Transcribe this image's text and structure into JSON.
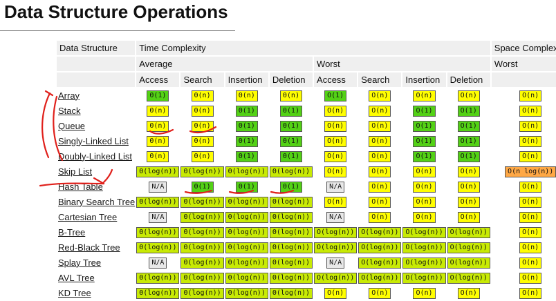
{
  "title": "Data Structure Operations",
  "headers": {
    "row1": [
      "Data Structure",
      "Time Complexity",
      "Space Complexity"
    ],
    "row2": [
      "Average",
      "Worst",
      "Worst"
    ],
    "row3": [
      "Access",
      "Search",
      "Insertion",
      "Deletion",
      "Access",
      "Search",
      "Insertion",
      "Deletion"
    ]
  },
  "colors": {
    "green": "#53d115",
    "yellow": "#fffe01",
    "lime": "#c8ea04",
    "orange": "#ffa845",
    "gray": "#e8e8e8",
    "ink": "#e0201b"
  },
  "rows": [
    {
      "name": "Array",
      "cells": [
        [
          "Θ(1)",
          "green"
        ],
        [
          "Θ(n)",
          "yellow"
        ],
        [
          "Θ(n)",
          "yellow"
        ],
        [
          "Θ(n)",
          "yellow"
        ],
        [
          "O(1)",
          "green"
        ],
        [
          "O(n)",
          "yellow"
        ],
        [
          "O(n)",
          "yellow"
        ],
        [
          "O(n)",
          "yellow"
        ],
        [
          "O(n)",
          "yellow"
        ]
      ]
    },
    {
      "name": "Stack",
      "cells": [
        [
          "Θ(n)",
          "yellow"
        ],
        [
          "Θ(n)",
          "yellow"
        ],
        [
          "Θ(1)",
          "green"
        ],
        [
          "Θ(1)",
          "green"
        ],
        [
          "O(n)",
          "yellow"
        ],
        [
          "O(n)",
          "yellow"
        ],
        [
          "O(1)",
          "green"
        ],
        [
          "O(1)",
          "green"
        ],
        [
          "O(n)",
          "yellow"
        ]
      ]
    },
    {
      "name": "Queue",
      "cells": [
        [
          "Θ(n)",
          "yellow"
        ],
        [
          "Θ(n)",
          "yellow"
        ],
        [
          "Θ(1)",
          "green"
        ],
        [
          "Θ(1)",
          "green"
        ],
        [
          "O(n)",
          "yellow"
        ],
        [
          "O(n)",
          "yellow"
        ],
        [
          "O(1)",
          "green"
        ],
        [
          "O(1)",
          "green"
        ],
        [
          "O(n)",
          "yellow"
        ]
      ]
    },
    {
      "name": "Singly-Linked List",
      "cells": [
        [
          "Θ(n)",
          "yellow"
        ],
        [
          "Θ(n)",
          "yellow"
        ],
        [
          "Θ(1)",
          "green"
        ],
        [
          "Θ(1)",
          "green"
        ],
        [
          "O(n)",
          "yellow"
        ],
        [
          "O(n)",
          "yellow"
        ],
        [
          "O(1)",
          "green"
        ],
        [
          "O(1)",
          "green"
        ],
        [
          "O(n)",
          "yellow"
        ]
      ]
    },
    {
      "name": "Doubly-Linked List",
      "cells": [
        [
          "Θ(n)",
          "yellow"
        ],
        [
          "Θ(n)",
          "yellow"
        ],
        [
          "Θ(1)",
          "green"
        ],
        [
          "Θ(1)",
          "green"
        ],
        [
          "O(n)",
          "yellow"
        ],
        [
          "O(n)",
          "yellow"
        ],
        [
          "O(1)",
          "green"
        ],
        [
          "O(1)",
          "green"
        ],
        [
          "O(n)",
          "yellow"
        ]
      ]
    },
    {
      "name": "Skip List",
      "cells": [
        [
          "Θ(log(n))",
          "lime"
        ],
        [
          "Θ(log(n))",
          "lime"
        ],
        [
          "Θ(log(n))",
          "lime"
        ],
        [
          "Θ(log(n))",
          "lime"
        ],
        [
          "O(n)",
          "yellow"
        ],
        [
          "O(n)",
          "yellow"
        ],
        [
          "O(n)",
          "yellow"
        ],
        [
          "O(n)",
          "yellow"
        ],
        [
          "O(n log(n))",
          "orange"
        ]
      ]
    },
    {
      "name": "Hash Table",
      "cells": [
        [
          "N/A",
          "gray"
        ],
        [
          "Θ(1)",
          "green"
        ],
        [
          "Θ(1)",
          "green"
        ],
        [
          "Θ(1)",
          "green"
        ],
        [
          "N/A",
          "gray"
        ],
        [
          "O(n)",
          "yellow"
        ],
        [
          "O(n)",
          "yellow"
        ],
        [
          "O(n)",
          "yellow"
        ],
        [
          "O(n)",
          "yellow"
        ]
      ]
    },
    {
      "name": "Binary Search Tree",
      "cells": [
        [
          "Θ(log(n))",
          "lime"
        ],
        [
          "Θ(log(n))",
          "lime"
        ],
        [
          "Θ(log(n))",
          "lime"
        ],
        [
          "Θ(log(n))",
          "lime"
        ],
        [
          "O(n)",
          "yellow"
        ],
        [
          "O(n)",
          "yellow"
        ],
        [
          "O(n)",
          "yellow"
        ],
        [
          "O(n)",
          "yellow"
        ],
        [
          "O(n)",
          "yellow"
        ]
      ]
    },
    {
      "name": "Cartesian Tree",
      "cells": [
        [
          "N/A",
          "gray"
        ],
        [
          "Θ(log(n))",
          "lime"
        ],
        [
          "Θ(log(n))",
          "lime"
        ],
        [
          "Θ(log(n))",
          "lime"
        ],
        [
          "N/A",
          "gray"
        ],
        [
          "O(n)",
          "yellow"
        ],
        [
          "O(n)",
          "yellow"
        ],
        [
          "O(n)",
          "yellow"
        ],
        [
          "O(n)",
          "yellow"
        ]
      ]
    },
    {
      "name": "B-Tree",
      "cells": [
        [
          "Θ(log(n))",
          "lime"
        ],
        [
          "Θ(log(n))",
          "lime"
        ],
        [
          "Θ(log(n))",
          "lime"
        ],
        [
          "Θ(log(n))",
          "lime"
        ],
        [
          "O(log(n))",
          "lime"
        ],
        [
          "O(log(n))",
          "lime"
        ],
        [
          "O(log(n))",
          "lime"
        ],
        [
          "O(log(n))",
          "lime"
        ],
        [
          "O(n)",
          "yellow"
        ]
      ]
    },
    {
      "name": "Red-Black Tree",
      "cells": [
        [
          "Θ(log(n))",
          "lime"
        ],
        [
          "Θ(log(n))",
          "lime"
        ],
        [
          "Θ(log(n))",
          "lime"
        ],
        [
          "Θ(log(n))",
          "lime"
        ],
        [
          "O(log(n))",
          "lime"
        ],
        [
          "O(log(n))",
          "lime"
        ],
        [
          "O(log(n))",
          "lime"
        ],
        [
          "O(log(n))",
          "lime"
        ],
        [
          "O(n)",
          "yellow"
        ]
      ]
    },
    {
      "name": "Splay Tree",
      "cells": [
        [
          "N/A",
          "gray"
        ],
        [
          "Θ(log(n))",
          "lime"
        ],
        [
          "Θ(log(n))",
          "lime"
        ],
        [
          "Θ(log(n))",
          "lime"
        ],
        [
          "N/A",
          "gray"
        ],
        [
          "O(log(n))",
          "lime"
        ],
        [
          "O(log(n))",
          "lime"
        ],
        [
          "O(log(n))",
          "lime"
        ],
        [
          "O(n)",
          "yellow"
        ]
      ]
    },
    {
      "name": "AVL Tree",
      "cells": [
        [
          "Θ(log(n))",
          "lime"
        ],
        [
          "Θ(log(n))",
          "lime"
        ],
        [
          "Θ(log(n))",
          "lime"
        ],
        [
          "Θ(log(n))",
          "lime"
        ],
        [
          "O(log(n))",
          "lime"
        ],
        [
          "O(log(n))",
          "lime"
        ],
        [
          "O(log(n))",
          "lime"
        ],
        [
          "O(log(n))",
          "lime"
        ],
        [
          "O(n)",
          "yellow"
        ]
      ]
    },
    {
      "name": "KD Tree",
      "cells": [
        [
          "Θ(log(n))",
          "lime"
        ],
        [
          "Θ(log(n))",
          "lime"
        ],
        [
          "Θ(log(n))",
          "lime"
        ],
        [
          "Θ(log(n))",
          "lime"
        ],
        [
          "O(n)",
          "yellow"
        ],
        [
          "O(n)",
          "yellow"
        ],
        [
          "O(n)",
          "yellow"
        ],
        [
          "O(n)",
          "yellow"
        ],
        [
          "O(n)",
          "yellow"
        ]
      ]
    }
  ]
}
